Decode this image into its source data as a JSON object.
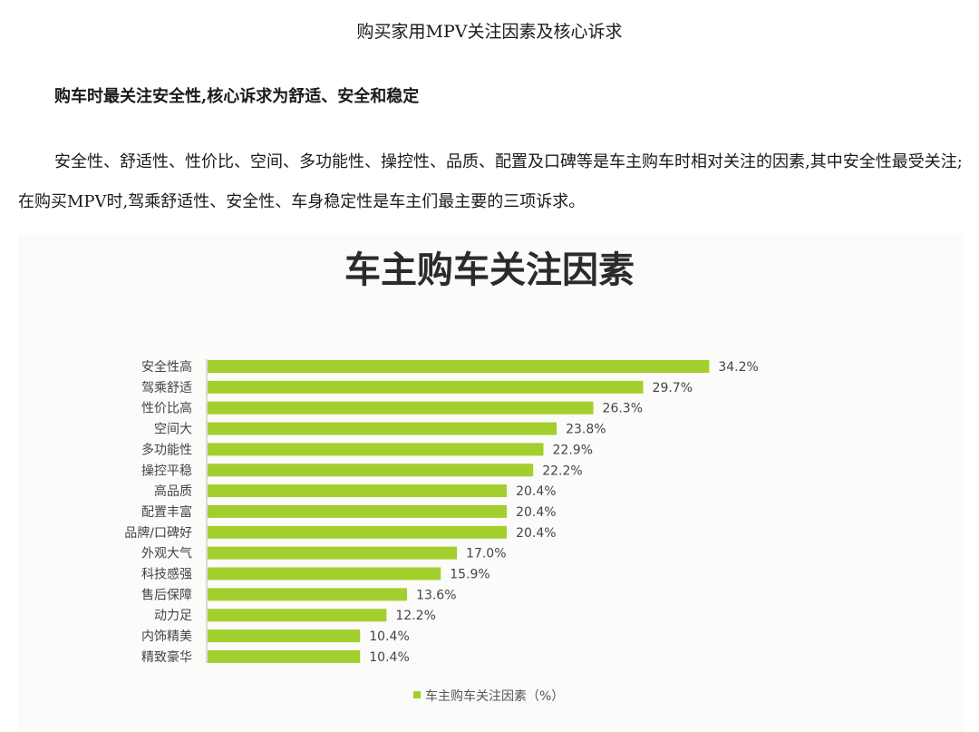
{
  "document": {
    "title": "购买家用MPV关注因素及核心诉求",
    "subtitle": "购车时最关注安全性,核心诉求为舒适、安全和稳定",
    "paragraph": "安全性、舒适性、性价比、空间、多功能性、操控性、品质、配置及口碑等是车主购车时相对关注的因素,其中安全性最受关注;在购买MPV时,驾乘舒适性、安全性、车身稳定性是车主们最主要的三项诉求。"
  },
  "chart_data": {
    "type": "bar",
    "orientation": "horizontal",
    "title": "车主购车关注因素",
    "legend": "车主购车关注因素（%）",
    "legend_position": "bottom",
    "bar_color": "#a3cf2e",
    "categories": [
      "安全性高",
      "驾乘舒适",
      "性价比高",
      "空间大",
      "多功能性",
      "操控平稳",
      "高品质",
      "配置丰富",
      "品牌/口碑好",
      "外观大气",
      "科技感强",
      "售后保障",
      "动力足",
      "内饰精美",
      "精致豪华"
    ],
    "values": [
      34.2,
      29.7,
      26.3,
      23.8,
      22.9,
      22.2,
      20.4,
      20.4,
      20.4,
      17.0,
      15.9,
      13.6,
      12.2,
      10.4,
      10.4
    ],
    "value_labels": [
      "34.2%",
      "29.7%",
      "26.3%",
      "23.8%",
      "22.9%",
      "22.2%",
      "20.4%",
      "20.4%",
      "20.4%",
      "17.0%",
      "15.9%",
      "13.6%",
      "12.2%",
      "10.4%",
      "10.4%"
    ],
    "grid": false
  }
}
